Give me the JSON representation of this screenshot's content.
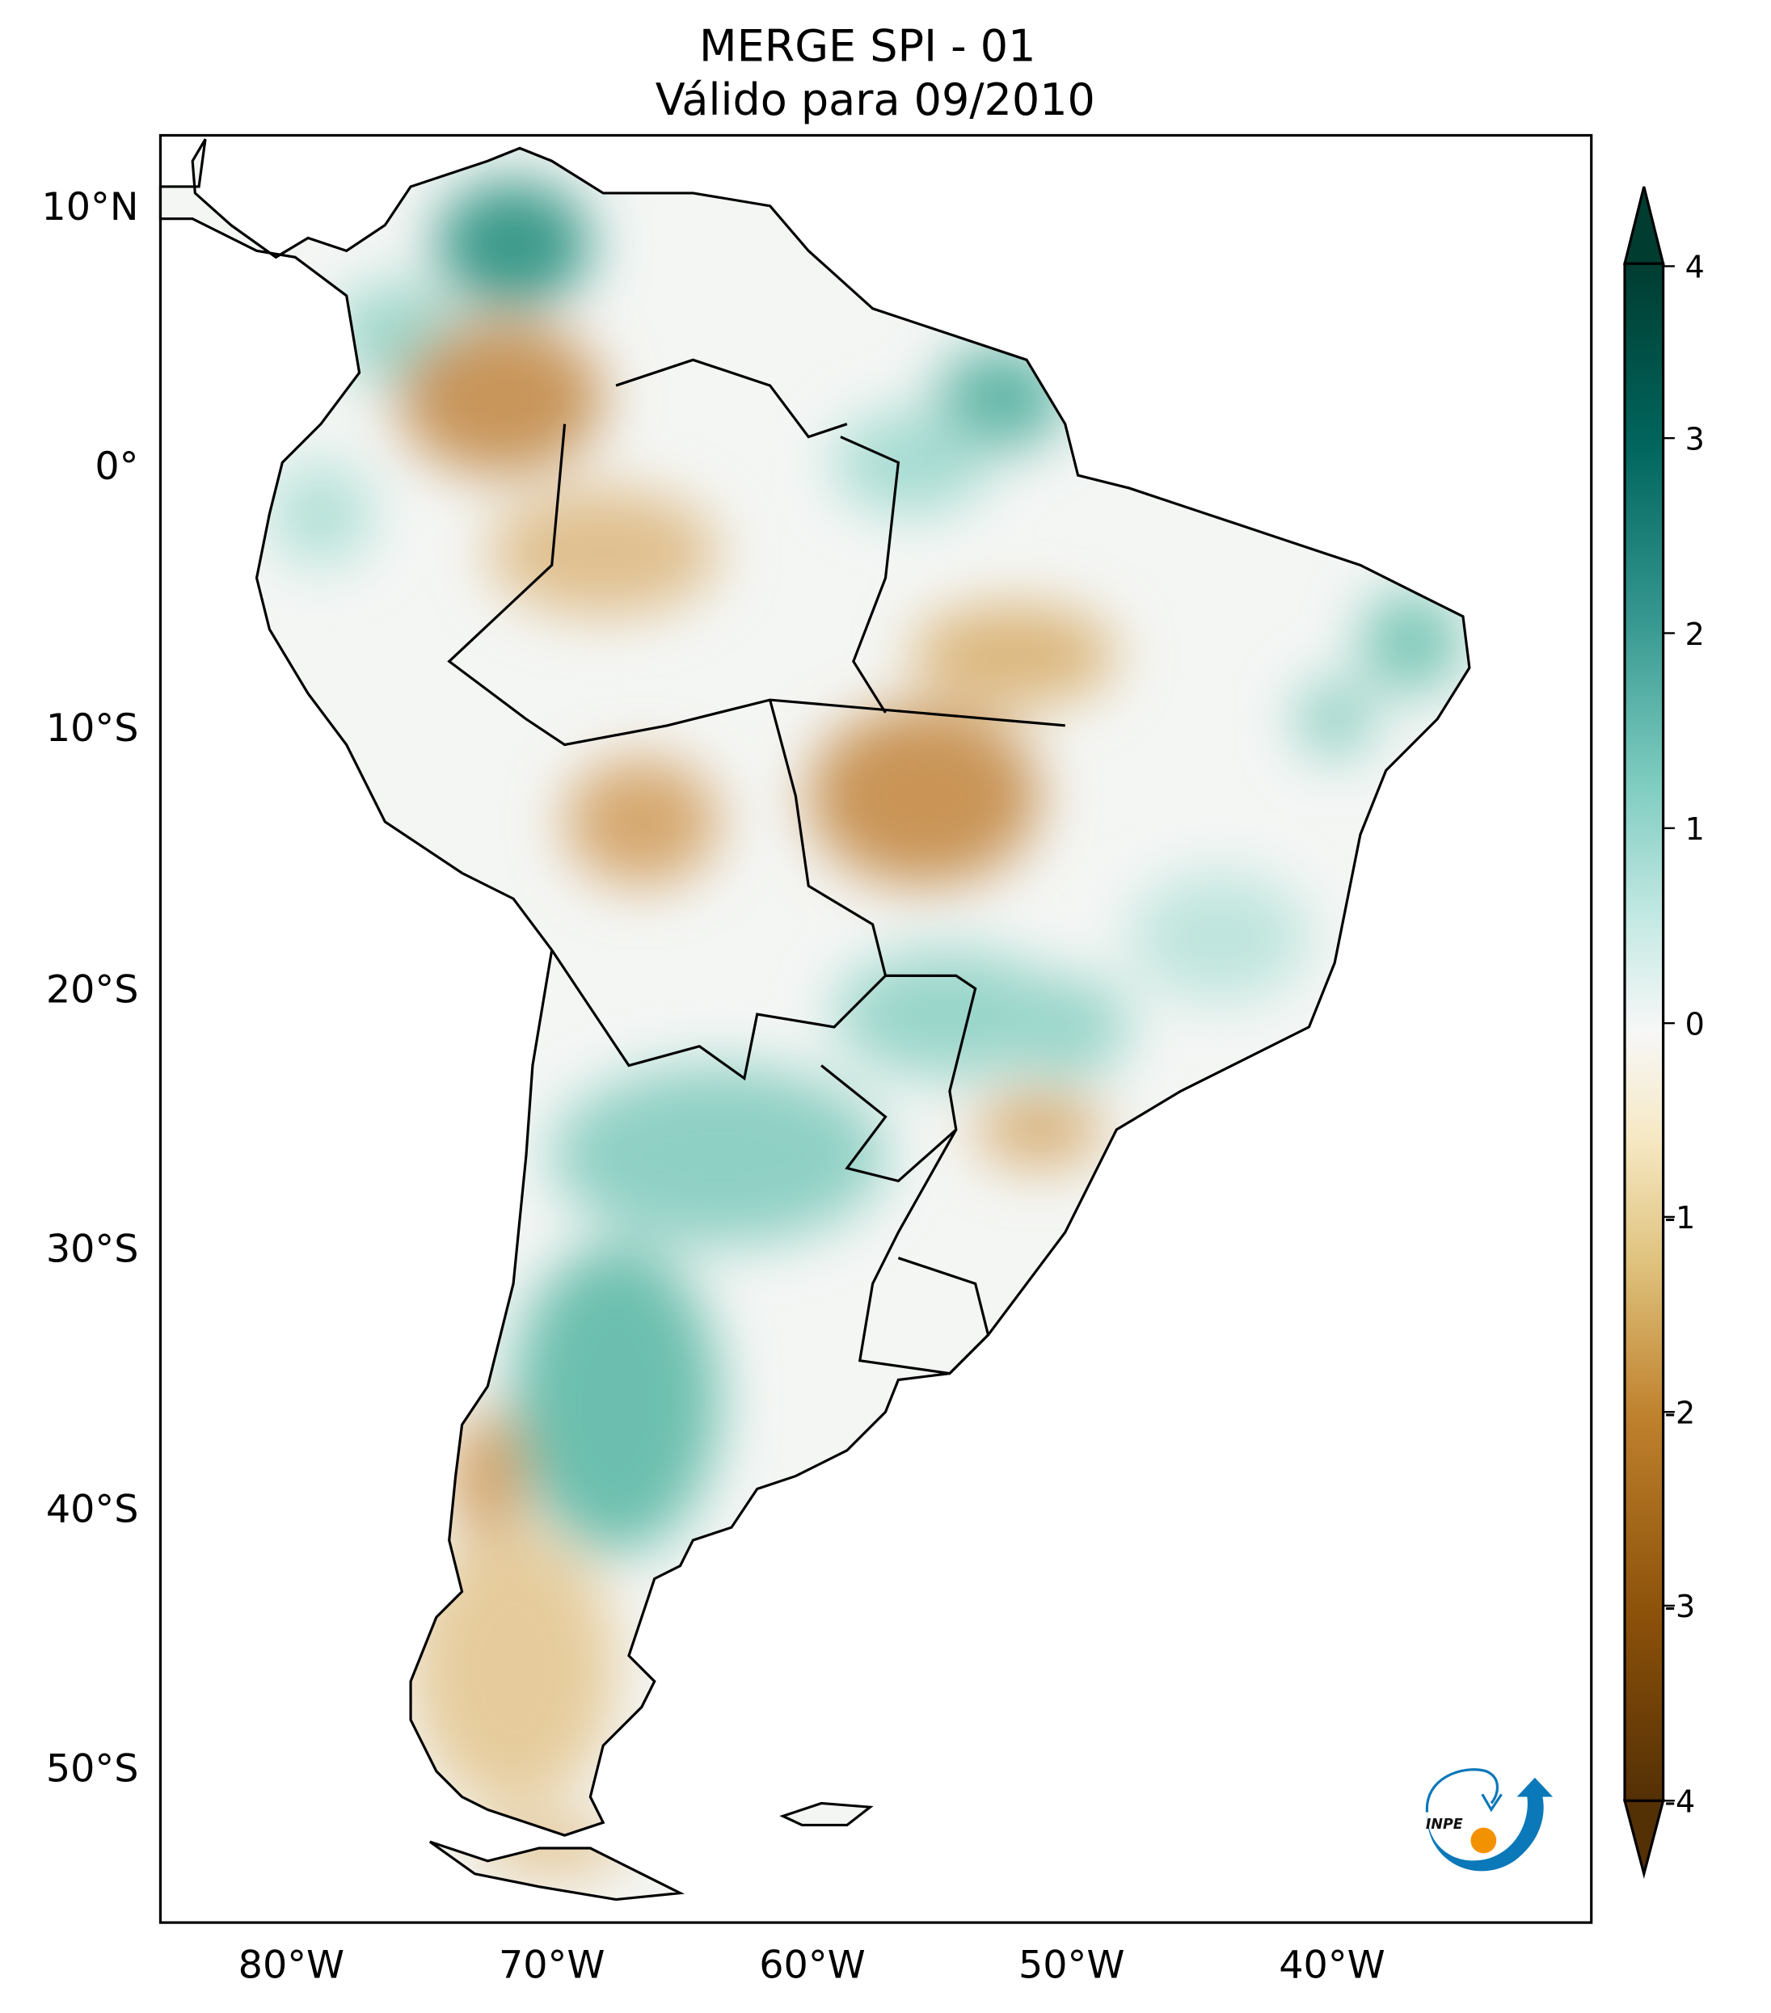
{
  "title": {
    "line1": "MERGE   SPI - 01",
    "line2": "Válido para 09/2010"
  },
  "lat_labels": [
    "10°N",
    "0°",
    "10°S",
    "20°S",
    "30°S",
    "40°S",
    "50°S"
  ],
  "lon_labels": [
    "80°W",
    "70°W",
    "60°W",
    "50°W",
    "40°W"
  ],
  "colorbar": {
    "ticks": [
      "4",
      "3",
      "2",
      "1",
      "0",
      "-1",
      "-2",
      "-3",
      "-4"
    ],
    "min": -4,
    "max": 4,
    "colors": [
      "#543005",
      "#8c510a",
      "#bf812d",
      "#dfc27d",
      "#f6e8c3",
      "#f5f5f5",
      "#c7eae5",
      "#80cdc1",
      "#35978f",
      "#01665e",
      "#003c30"
    ]
  },
  "logo": {
    "text": "INPE",
    "blue": "#0a78b9",
    "orange": "#f39200"
  }
}
